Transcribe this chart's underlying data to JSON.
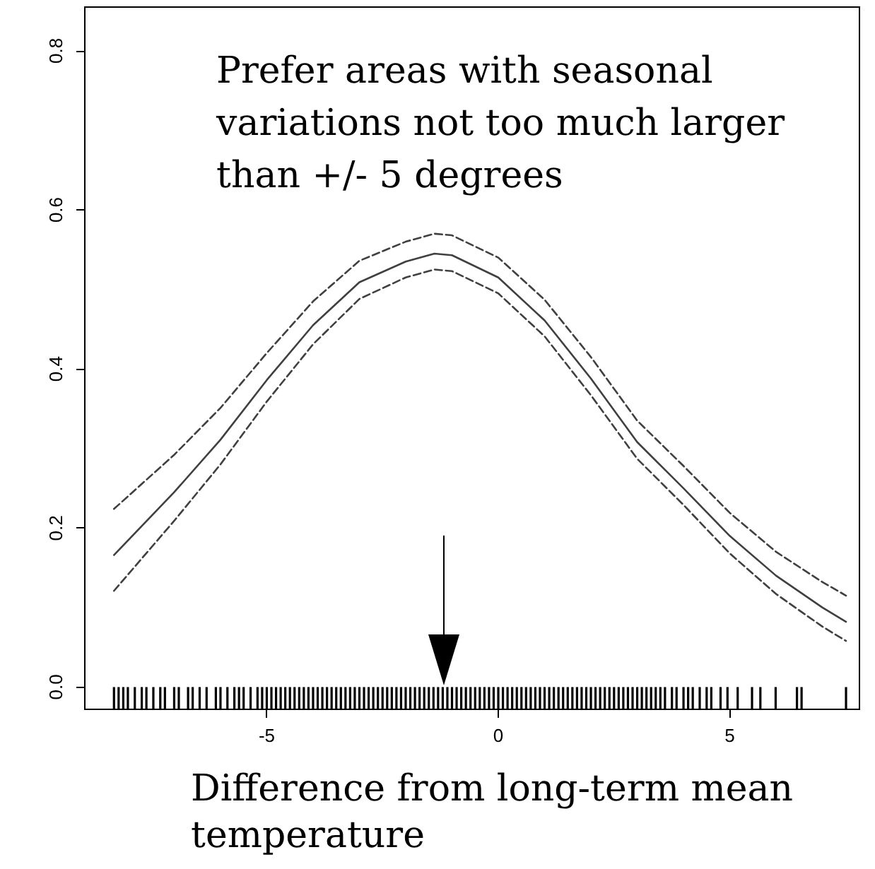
{
  "chart_data": {
    "type": "line",
    "xlabel": "Difference from long-term mean temperature",
    "annotations": [
      "Prefer areas with seasonal variations not too much larger than +/- 5 degrees"
    ],
    "x": [
      -8.3,
      -7,
      -6,
      -5,
      -4,
      -3,
      -2,
      -1.38,
      -1,
      0,
      1,
      2,
      3,
      4,
      5,
      6,
      7,
      7.51
    ],
    "series": [
      {
        "color": "#404040",
        "line_style": "solid",
        "values": [
          0.166,
          0.245,
          0.311,
          0.386,
          0.455,
          0.509,
          0.535,
          0.545,
          0.543,
          0.515,
          0.461,
          0.388,
          0.308,
          0.25,
          0.19,
          0.14,
          0.1,
          0.082
        ]
      },
      {
        "color": "#404040",
        "line_style": "dashed",
        "values": [
          0.224,
          0.292,
          0.351,
          0.42,
          0.485,
          0.536,
          0.56,
          0.57,
          0.568,
          0.54,
          0.487,
          0.415,
          0.335,
          0.278,
          0.219,
          0.17,
          0.132,
          0.115
        ]
      },
      {
        "color": "#404040",
        "line_style": "dashed",
        "values": [
          0.121,
          0.209,
          0.28,
          0.359,
          0.431,
          0.488,
          0.515,
          0.525,
          0.523,
          0.495,
          0.441,
          0.367,
          0.287,
          0.229,
          0.168,
          0.117,
          0.076,
          0.058
        ]
      },
      {
        "type": "bar",
        "color": "#000000",
        "base": [
          -0.028,
          -0.028,
          -0.028,
          -0.028,
          -0.028,
          -0.028,
          -0.028,
          -0.028,
          -0.028,
          -0.028,
          -0.028,
          -0.028,
          -0.028,
          -0.028,
          -0.028,
          -0.028,
          -0.028,
          -0.028,
          -0.028,
          -0.028,
          -0.028,
          -0.028,
          -0.028,
          -0.028,
          -0.028,
          -0.028,
          -0.028,
          -0.028,
          -0.028,
          -0.028,
          -0.028,
          -0.028,
          -0.028,
          -0.028,
          -0.028,
          -0.028,
          -0.028,
          -0.028,
          -0.028,
          -0.028,
          -0.028,
          -0.028,
          -0.028,
          -0.028,
          -0.028,
          -0.028,
          -0.028,
          -0.028,
          -0.028,
          -0.028,
          -0.028,
          -0.028,
          -0.028,
          -0.028,
          -0.028,
          -0.028,
          -0.028,
          -0.028,
          -0.028,
          -0.028,
          -0.028,
          -0.028,
          -0.028,
          -0.028,
          -0.028,
          -0.028,
          -0.028,
          -0.028,
          -0.028,
          -0.028,
          -0.028,
          -0.028,
          -0.028,
          -0.028,
          -0.028,
          -0.028,
          -0.028,
          -0.028,
          -0.028,
          -0.028,
          -0.028,
          -0.028,
          -0.028,
          -0.028,
          -0.028,
          -0.028,
          -0.028,
          -0.028,
          -0.028,
          -0.028,
          -0.028,
          -0.028,
          -0.028,
          -0.028,
          -0.028,
          -0.028,
          -0.028,
          -0.028,
          -0.028,
          -0.028,
          -0.028,
          -0.028,
          -0.028,
          -0.028,
          -0.028,
          -0.028,
          -0.028,
          -0.028,
          -0.028,
          -0.028,
          -0.028,
          -0.028,
          -0.028,
          -0.028,
          -0.028,
          -0.028,
          -0.028,
          -0.028,
          -0.028,
          -0.028,
          -0.028,
          -0.028,
          -0.028,
          -0.028,
          -0.028,
          -0.028,
          -0.028,
          -0.028,
          -0.028
        ],
        "x": [
          -8.3,
          -8.2,
          -8.1,
          -8.0,
          -7.85,
          -7.7,
          -7.6,
          -7.45,
          -7.3,
          -7.2,
          -7.0,
          -6.9,
          -6.7,
          -6.6,
          -6.45,
          -6.3,
          -6.1,
          -6.0,
          -5.85,
          -5.7,
          -5.6,
          -5.5,
          -5.35,
          -5.2,
          -5.1,
          -5.0,
          -4.9,
          -4.8,
          -4.7,
          -4.6,
          -4.5,
          -4.4,
          -4.3,
          -4.2,
          -4.1,
          -4.0,
          -3.9,
          -3.8,
          -3.7,
          -3.6,
          -3.5,
          -3.4,
          -3.3,
          -3.2,
          -3.1,
          -3.0,
          -2.9,
          -2.8,
          -2.7,
          -2.6,
          -2.5,
          -2.4,
          -2.3,
          -2.2,
          -2.1,
          -2.0,
          -1.9,
          -1.8,
          -1.7,
          -1.6,
          -1.5,
          -1.4,
          -1.3,
          -1.2,
          -1.1,
          -1.0,
          -0.9,
          -0.8,
          -0.7,
          -0.6,
          -0.5,
          -0.4,
          -0.3,
          -0.2,
          -0.1,
          0.0,
          0.1,
          0.2,
          0.3,
          0.4,
          0.5,
          0.6,
          0.7,
          0.8,
          0.9,
          1.0,
          1.1,
          1.2,
          1.3,
          1.4,
          1.5,
          1.6,
          1.7,
          1.8,
          1.9,
          2.0,
          2.1,
          2.2,
          2.3,
          2.4,
          2.5,
          2.6,
          2.7,
          2.8,
          2.9,
          3.0,
          3.1,
          3.2,
          3.3,
          3.4,
          3.5,
          3.6,
          3.75,
          3.85,
          4.0,
          4.1,
          4.2,
          4.35,
          4.5,
          4.6,
          4.8,
          4.95,
          5.17,
          5.48,
          5.66,
          5.99,
          6.45,
          6.55,
          7.51
        ],
        "values": [
          0.028,
          0.028,
          0.028,
          0.028,
          0.028,
          0.028,
          0.028,
          0.028,
          0.028,
          0.028,
          0.028,
          0.028,
          0.028,
          0.028,
          0.028,
          0.028,
          0.028,
          0.028,
          0.028,
          0.028,
          0.028,
          0.028,
          0.028,
          0.028,
          0.028,
          0.028,
          0.028,
          0.028,
          0.028,
          0.028,
          0.028,
          0.028,
          0.028,
          0.028,
          0.028,
          0.028,
          0.028,
          0.028,
          0.028,
          0.028,
          0.028,
          0.028,
          0.028,
          0.028,
          0.028,
          0.028,
          0.028,
          0.028,
          0.028,
          0.028,
          0.028,
          0.028,
          0.028,
          0.028,
          0.028,
          0.028,
          0.028,
          0.028,
          0.028,
          0.028,
          0.028,
          0.028,
          0.028,
          0.028,
          0.028,
          0.028,
          0.028,
          0.028,
          0.028,
          0.028,
          0.028,
          0.028,
          0.028,
          0.028,
          0.028,
          0.028,
          0.028,
          0.028,
          0.028,
          0.028,
          0.028,
          0.028,
          0.028,
          0.028,
          0.028,
          0.028,
          0.028,
          0.028,
          0.028,
          0.028,
          0.028,
          0.028,
          0.028,
          0.028,
          0.028,
          0.028,
          0.028,
          0.028,
          0.028,
          0.028,
          0.028,
          0.028,
          0.028,
          0.028,
          0.028,
          0.028,
          0.028,
          0.028,
          0.028,
          0.028,
          0.028,
          0.028,
          0.028,
          0.028,
          0.028,
          0.028,
          0.028,
          0.028,
          0.028,
          0.028,
          0.028,
          0.028,
          0.028,
          0.028,
          0.028,
          0.028,
          0.028,
          0.028,
          0.028
        ]
      }
    ],
    "xlim": [
      -8.93,
      7.8
    ],
    "xticks": [
      -5,
      0,
      5
    ],
    "ylim": [
      -0.028,
      0.855
    ],
    "yticks": [
      {
        "value": 0,
        "label": "0.0"
      },
      {
        "value": 0.2,
        "label": "0.2"
      },
      {
        "value": 0.4,
        "label": "0.4"
      },
      {
        "value": 0.6,
        "label": "0.6"
      },
      {
        "value": 0.8,
        "label": "0.8"
      }
    ],
    "grid": false
  }
}
